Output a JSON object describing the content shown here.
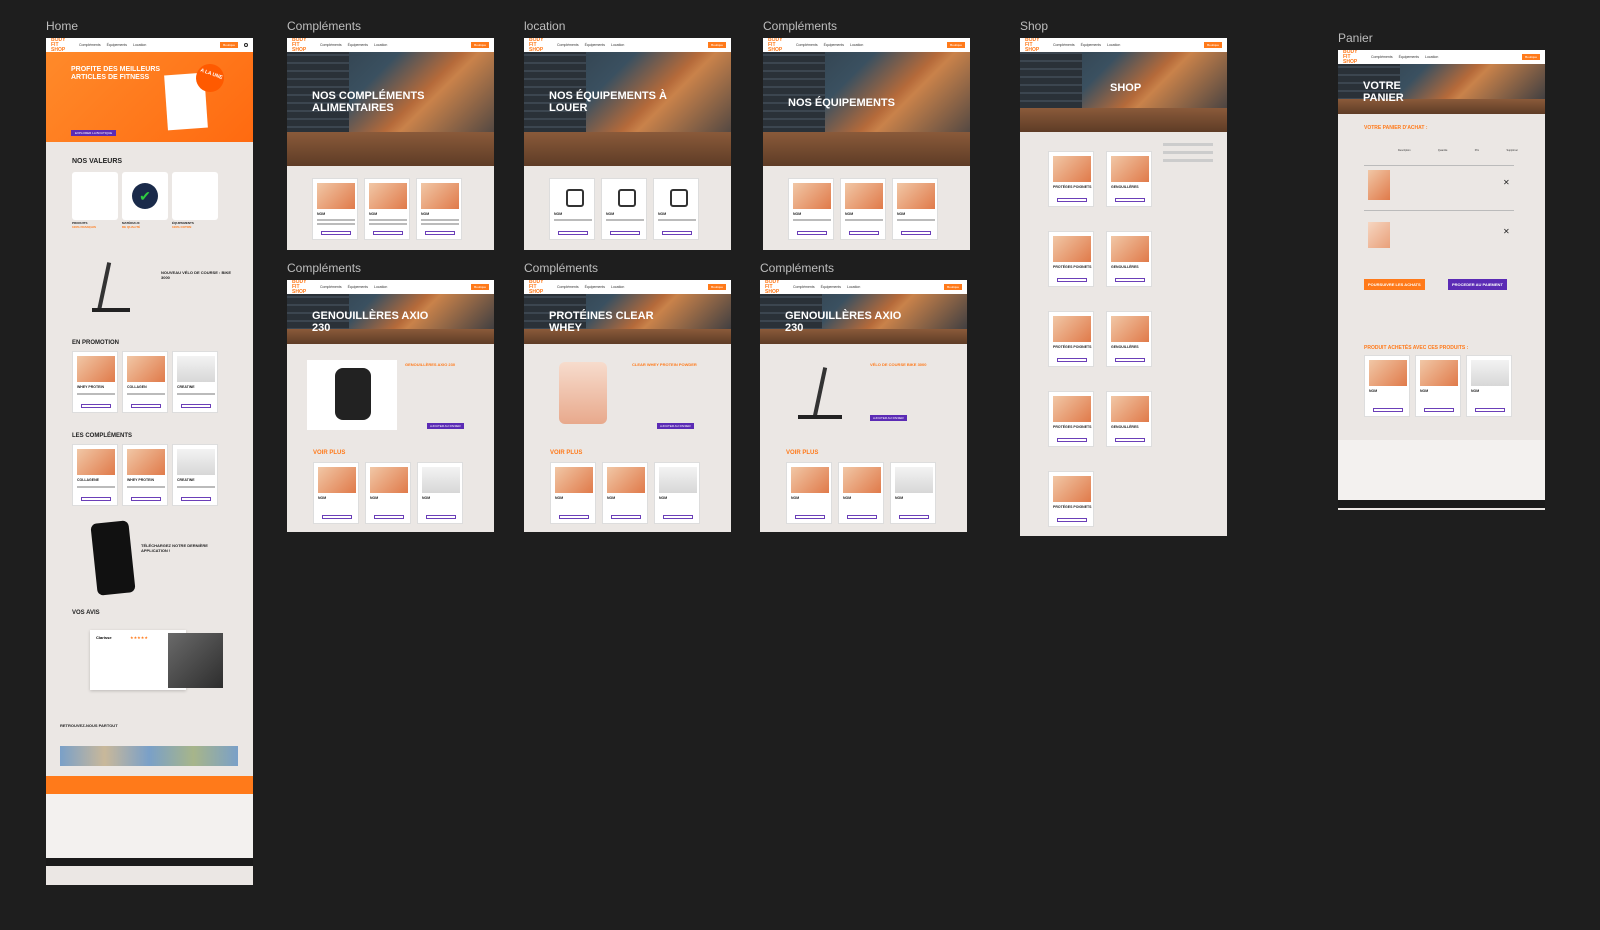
{
  "labels": {
    "home": "Home",
    "c1": "Compléments",
    "loc": "location",
    "c2": "Compléments",
    "shop": "Shop",
    "panier": "Panier",
    "c3": "Compléments",
    "c4": "Compléments",
    "c5": "Compléments"
  },
  "nav": {
    "logo": "BODY FIT SHOP",
    "links": [
      "Compléments",
      "Équipements",
      "Location"
    ],
    "cta": "Boutique"
  },
  "home": {
    "hero_title": "PROFITE DES MEILLEURS ARTICLES DE FITNESS",
    "hero_btn": "EXPLORER LA BOUTIQUE",
    "badge": "A LA UNE",
    "valeurs_title": "NOS VALEURS",
    "valeurs": [
      {
        "label": "PRODUITS",
        "sub": "100% FRANÇAIS"
      },
      {
        "label": "MATÉRIAUX",
        "sub": "DE QUALITÉ"
      },
      {
        "label": "ÉQUIPEMENTS",
        "sub": "100% COTON"
      }
    ],
    "velo_title": "NOUVEAU VÉLO DE COURSE : BIKE 3000",
    "promo_title": "EN PROMOTION",
    "promo_items": [
      "WHEY PROTEIN",
      "COLLAGEN",
      "CREATINE"
    ],
    "complements_title": "LES COMPLÉMENTS",
    "comp_items": [
      "COLLAGENE",
      "WHEY PROTEIN",
      "CREATINE"
    ],
    "app_title": "TÉLÉCHARGEZ NOTRE DERNIÈRE APPLICATION !",
    "avis_title": "VOS AVIS",
    "avis_name": "Clarisse",
    "partout_title": "RETROUVEZ-NOUS PARTOUT"
  },
  "frames": {
    "c1_title": "NOS COMPLÉMENTS ALIMENTAIRES",
    "loc_title": "NOS ÉQUIPEMENTS À LOUER",
    "c2_title": "NOS ÉQUIPEMENTS",
    "shop_title": "Shop",
    "panier_title": "VOTRE PANIER",
    "c3_title": "GENOUILLÈRES AXIO 230",
    "c4_title": "PROTÉINES CLEAR WHEY",
    "c5_title": "GENOUILLÈRES AXIO 230",
    "card_name": "NOM",
    "voir_plus": "VOIR PLUS",
    "c3_product": "GENOUILLÈRES AXIO 230",
    "c4_product": "CLEAR WHEY PROTEIN POWDER",
    "c5_product": "VÉLO DE COURSE BIKE 3000",
    "add_cart": "AJOUTER AU PANIER"
  },
  "shop": {
    "products": [
      "PROTÉGES POIGNETS",
      "GENOUILLÈRES",
      "PROTÉGES POIGNETS",
      "GENOUILLÈRES",
      "PROTÉGES POIGNETS",
      "GENOUILLÈRES",
      "PROTÉGES POIGNETS",
      "GENOUILLÈRES",
      "PROTÉGES POIGNETS"
    ]
  },
  "panier": {
    "subtitle": "VOTRE PANIER D'ACHAT :",
    "cols": [
      "Description",
      "Quantité",
      "Prix",
      "Supprimer"
    ],
    "btn_continue": "POURSUIVRE LES ACHATS",
    "btn_pay": "PROCEDER AU PAIEMENT",
    "also_title": "PRODUIT ACHETÉS AVEC CES PRODUITS :"
  },
  "colors": {
    "orange": "#ff7a1a",
    "purple": "#5b2bb5",
    "frame_bg": "#ebe7e4"
  }
}
